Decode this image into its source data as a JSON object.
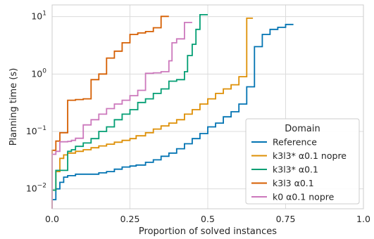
{
  "chart_data": {
    "type": "line",
    "xlabel": "Proportion of solved instances",
    "ylabel": "Planning time (s)",
    "xlim": [
      0.0,
      1.0
    ],
    "ylim": [
      0.0045,
      16
    ],
    "yscale": "log",
    "x_ticks": [
      "0.0",
      "0.25",
      "0.5",
      "0.75",
      "1.0"
    ],
    "x_tick_values": [
      0,
      0.25,
      0.5,
      0.75,
      1.0
    ],
    "y_ticks": [
      {
        "base": "10",
        "exp": "−2",
        "value": 0.01
      },
      {
        "base": "10",
        "exp": "−1",
        "value": 0.1
      },
      {
        "base": "10",
        "exp": "0",
        "value": 1
      },
      {
        "base": "10",
        "exp": "1",
        "value": 10
      }
    ],
    "grid": true,
    "legend": {
      "title": "Domain",
      "placement": "lower-right"
    },
    "series": [
      {
        "name": "Reference",
        "color": "#0173b2",
        "points": [
          [
            0.0,
            0.0045
          ],
          [
            0.0,
            0.0065
          ],
          [
            0.012,
            0.0065
          ],
          [
            0.012,
            0.01
          ],
          [
            0.025,
            0.01
          ],
          [
            0.025,
            0.013
          ],
          [
            0.037,
            0.013
          ],
          [
            0.037,
            0.016
          ],
          [
            0.05,
            0.016
          ],
          [
            0.05,
            0.017
          ],
          [
            0.075,
            0.017
          ],
          [
            0.075,
            0.018
          ],
          [
            0.1,
            0.018
          ],
          [
            0.1,
            0.018
          ],
          [
            0.15,
            0.018
          ],
          [
            0.15,
            0.019
          ],
          [
            0.175,
            0.019
          ],
          [
            0.175,
            0.02
          ],
          [
            0.2,
            0.02
          ],
          [
            0.2,
            0.022
          ],
          [
            0.225,
            0.022
          ],
          [
            0.225,
            0.024
          ],
          [
            0.25,
            0.024
          ],
          [
            0.25,
            0.025
          ],
          [
            0.27,
            0.025
          ],
          [
            0.27,
            0.026
          ],
          [
            0.3,
            0.026
          ],
          [
            0.3,
            0.029
          ],
          [
            0.325,
            0.029
          ],
          [
            0.325,
            0.032
          ],
          [
            0.35,
            0.032
          ],
          [
            0.35,
            0.037
          ],
          [
            0.375,
            0.037
          ],
          [
            0.375,
            0.042
          ],
          [
            0.4,
            0.042
          ],
          [
            0.4,
            0.05
          ],
          [
            0.425,
            0.05
          ],
          [
            0.425,
            0.061
          ],
          [
            0.45,
            0.061
          ],
          [
            0.45,
            0.075
          ],
          [
            0.475,
            0.075
          ],
          [
            0.475,
            0.092
          ],
          [
            0.5,
            0.092
          ],
          [
            0.5,
            0.12
          ],
          [
            0.525,
            0.12
          ],
          [
            0.525,
            0.14
          ],
          [
            0.55,
            0.14
          ],
          [
            0.55,
            0.18
          ],
          [
            0.575,
            0.18
          ],
          [
            0.575,
            0.22
          ],
          [
            0.6,
            0.22
          ],
          [
            0.6,
            0.3
          ],
          [
            0.625,
            0.3
          ],
          [
            0.625,
            0.6
          ],
          [
            0.65,
            0.6
          ],
          [
            0.65,
            3.0
          ],
          [
            0.675,
            3.0
          ],
          [
            0.675,
            4.9
          ],
          [
            0.7,
            4.9
          ],
          [
            0.7,
            6.0
          ],
          [
            0.725,
            6.0
          ],
          [
            0.725,
            6.5
          ],
          [
            0.75,
            6.5
          ],
          [
            0.75,
            7.3
          ],
          [
            0.775,
            7.3
          ]
        ]
      },
      {
        "name": "k3l3* α0.1 nopre",
        "color": "#de8f05",
        "points": [
          [
            0.0,
            0.0045
          ],
          [
            0.0,
            0.0095
          ],
          [
            0.012,
            0.0095
          ],
          [
            0.012,
            0.02
          ],
          [
            0.025,
            0.02
          ],
          [
            0.025,
            0.034
          ],
          [
            0.037,
            0.034
          ],
          [
            0.037,
            0.039
          ],
          [
            0.05,
            0.039
          ],
          [
            0.05,
            0.042
          ],
          [
            0.075,
            0.042
          ],
          [
            0.075,
            0.045
          ],
          [
            0.1,
            0.045
          ],
          [
            0.1,
            0.048
          ],
          [
            0.125,
            0.048
          ],
          [
            0.125,
            0.052
          ],
          [
            0.15,
            0.052
          ],
          [
            0.15,
            0.056
          ],
          [
            0.175,
            0.056
          ],
          [
            0.175,
            0.06
          ],
          [
            0.2,
            0.06
          ],
          [
            0.2,
            0.065
          ],
          [
            0.225,
            0.065
          ],
          [
            0.225,
            0.07
          ],
          [
            0.25,
            0.07
          ],
          [
            0.25,
            0.075
          ],
          [
            0.27,
            0.075
          ],
          [
            0.27,
            0.084
          ],
          [
            0.3,
            0.084
          ],
          [
            0.3,
            0.095
          ],
          [
            0.325,
            0.095
          ],
          [
            0.325,
            0.11
          ],
          [
            0.35,
            0.11
          ],
          [
            0.35,
            0.125
          ],
          [
            0.375,
            0.125
          ],
          [
            0.375,
            0.14
          ],
          [
            0.4,
            0.14
          ],
          [
            0.4,
            0.16
          ],
          [
            0.425,
            0.16
          ],
          [
            0.425,
            0.2
          ],
          [
            0.45,
            0.2
          ],
          [
            0.45,
            0.24
          ],
          [
            0.475,
            0.24
          ],
          [
            0.475,
            0.3
          ],
          [
            0.5,
            0.3
          ],
          [
            0.5,
            0.37
          ],
          [
            0.525,
            0.37
          ],
          [
            0.525,
            0.46
          ],
          [
            0.55,
            0.46
          ],
          [
            0.55,
            0.55
          ],
          [
            0.575,
            0.55
          ],
          [
            0.575,
            0.65
          ],
          [
            0.6,
            0.65
          ],
          [
            0.6,
            0.9
          ],
          [
            0.625,
            0.9
          ],
          [
            0.625,
            9.4
          ],
          [
            0.645,
            9.4
          ]
        ]
      },
      {
        "name": "k3l3* α0.1",
        "color": "#029e73",
        "points": [
          [
            0.0,
            0.0045
          ],
          [
            0.0,
            0.0095
          ],
          [
            0.012,
            0.0095
          ],
          [
            0.012,
            0.021
          ],
          [
            0.05,
            0.021
          ],
          [
            0.05,
            0.045
          ],
          [
            0.062,
            0.045
          ],
          [
            0.062,
            0.048
          ],
          [
            0.075,
            0.048
          ],
          [
            0.075,
            0.055
          ],
          [
            0.1,
            0.055
          ],
          [
            0.1,
            0.063
          ],
          [
            0.125,
            0.063
          ],
          [
            0.125,
            0.075
          ],
          [
            0.15,
            0.075
          ],
          [
            0.15,
            0.1
          ],
          [
            0.175,
            0.1
          ],
          [
            0.175,
            0.12
          ],
          [
            0.2,
            0.12
          ],
          [
            0.2,
            0.16
          ],
          [
            0.225,
            0.16
          ],
          [
            0.225,
            0.2
          ],
          [
            0.25,
            0.2
          ],
          [
            0.25,
            0.24
          ],
          [
            0.275,
            0.24
          ],
          [
            0.275,
            0.32
          ],
          [
            0.3,
            0.32
          ],
          [
            0.3,
            0.37
          ],
          [
            0.325,
            0.37
          ],
          [
            0.325,
            0.46
          ],
          [
            0.35,
            0.46
          ],
          [
            0.35,
            0.55
          ],
          [
            0.375,
            0.55
          ],
          [
            0.375,
            0.75
          ],
          [
            0.4,
            0.75
          ],
          [
            0.4,
            0.8
          ],
          [
            0.425,
            0.8
          ],
          [
            0.425,
            1.1
          ],
          [
            0.435,
            1.1
          ],
          [
            0.435,
            2.1
          ],
          [
            0.45,
            2.1
          ],
          [
            0.45,
            3.3
          ],
          [
            0.462,
            3.3
          ],
          [
            0.462,
            6.0
          ],
          [
            0.475,
            6.0
          ],
          [
            0.475,
            10.8
          ],
          [
            0.5,
            10.8
          ]
        ]
      },
      {
        "name": "k3l3 α0.1",
        "color": "#d55e00",
        "points": [
          [
            0.0,
            0.0045
          ],
          [
            0.0,
            0.047
          ],
          [
            0.012,
            0.047
          ],
          [
            0.012,
            0.068
          ],
          [
            0.025,
            0.068
          ],
          [
            0.025,
            0.095
          ],
          [
            0.05,
            0.095
          ],
          [
            0.05,
            0.35
          ],
          [
            0.075,
            0.35
          ],
          [
            0.075,
            0.36
          ],
          [
            0.1,
            0.36
          ],
          [
            0.1,
            0.37
          ],
          [
            0.125,
            0.37
          ],
          [
            0.125,
            0.8
          ],
          [
            0.15,
            0.8
          ],
          [
            0.15,
            1.0
          ],
          [
            0.175,
            1.0
          ],
          [
            0.175,
            1.9
          ],
          [
            0.2,
            1.9
          ],
          [
            0.2,
            2.5
          ],
          [
            0.225,
            2.5
          ],
          [
            0.225,
            3.5
          ],
          [
            0.25,
            3.5
          ],
          [
            0.25,
            4.9
          ],
          [
            0.275,
            4.9
          ],
          [
            0.275,
            5.2
          ],
          [
            0.3,
            5.2
          ],
          [
            0.3,
            5.5
          ],
          [
            0.325,
            5.5
          ],
          [
            0.325,
            6.4
          ],
          [
            0.35,
            6.4
          ],
          [
            0.35,
            10.1
          ],
          [
            0.375,
            10.1
          ]
        ]
      },
      {
        "name": "k0 α0.1 nopre",
        "color": "#cc78bc",
        "points": [
          [
            0.0,
            0.0045
          ],
          [
            0.0,
            0.04
          ],
          [
            0.012,
            0.04
          ],
          [
            0.012,
            0.045
          ],
          [
            0.025,
            0.045
          ],
          [
            0.025,
            0.066
          ],
          [
            0.05,
            0.066
          ],
          [
            0.05,
            0.067
          ],
          [
            0.062,
            0.067
          ],
          [
            0.062,
            0.07
          ],
          [
            0.075,
            0.07
          ],
          [
            0.075,
            0.076
          ],
          [
            0.1,
            0.076
          ],
          [
            0.1,
            0.13
          ],
          [
            0.125,
            0.13
          ],
          [
            0.125,
            0.16
          ],
          [
            0.15,
            0.16
          ],
          [
            0.15,
            0.2
          ],
          [
            0.175,
            0.2
          ],
          [
            0.175,
            0.25
          ],
          [
            0.2,
            0.25
          ],
          [
            0.2,
            0.3
          ],
          [
            0.225,
            0.3
          ],
          [
            0.225,
            0.35
          ],
          [
            0.25,
            0.35
          ],
          [
            0.25,
            0.42
          ],
          [
            0.275,
            0.42
          ],
          [
            0.275,
            0.52
          ],
          [
            0.3,
            0.52
          ],
          [
            0.3,
            1.03
          ],
          [
            0.325,
            1.03
          ],
          [
            0.325,
            1.05
          ],
          [
            0.35,
            1.05
          ],
          [
            0.35,
            1.1
          ],
          [
            0.375,
            1.1
          ],
          [
            0.375,
            1.7
          ],
          [
            0.385,
            1.7
          ],
          [
            0.385,
            3.5
          ],
          [
            0.4,
            3.5
          ],
          [
            0.4,
            4.1
          ],
          [
            0.425,
            4.1
          ],
          [
            0.425,
            7.9
          ],
          [
            0.45,
            7.9
          ]
        ]
      }
    ]
  }
}
